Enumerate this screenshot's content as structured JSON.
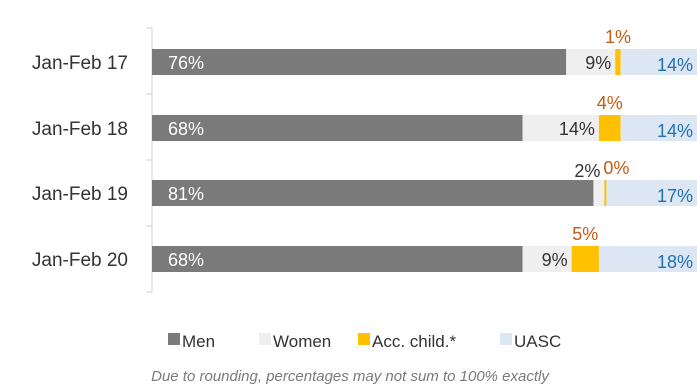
{
  "chart_data": {
    "type": "bar",
    "orientation": "horizontal",
    "stacked": true,
    "categories": [
      "Jan-Feb 17",
      "Jan-Feb 18",
      "Jan-Feb 19",
      "Jan-Feb 20"
    ],
    "series": [
      {
        "name": "Men",
        "color": "#7a7a7a",
        "label_color": "#ffffff",
        "values": [
          76,
          68,
          81,
          68
        ],
        "labels": [
          "76%",
          "68%",
          "81%",
          "68%"
        ]
      },
      {
        "name": "Women",
        "color": "#efefef",
        "label_color": "#333333",
        "values": [
          9,
          14,
          2,
          9
        ],
        "labels": [
          "9%",
          "14%",
          "2%",
          "9%"
        ]
      },
      {
        "name": "Acc. child.*",
        "color": "#ffc000",
        "label_color": "#c55a11",
        "values": [
          1,
          4,
          0,
          5
        ],
        "labels": [
          "1%",
          "4%",
          "0%",
          "5%"
        ]
      },
      {
        "name": "UASC",
        "color": "#dde7f3",
        "label_color": "#1f6fb5",
        "values": [
          14,
          14,
          17,
          18
        ],
        "labels": [
          "14%",
          "14%",
          "17%",
          "18%"
        ]
      }
    ],
    "xlim": [
      0,
      100
    ],
    "grid": false,
    "legend_position": "bottom"
  },
  "footnote": "Due to rounding, percentages may not sum to 100% exactly"
}
